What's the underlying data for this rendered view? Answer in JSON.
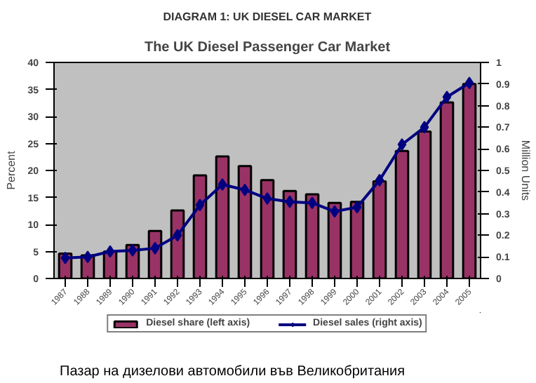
{
  "chart_data": {
    "type": "bar",
    "title": "DIAGRAM 1: UK DIESEL CAR MARKET",
    "subtitle": "The UK Diesel Passenger Car Market",
    "ylabel": "Percent",
    "y2label": "Million Units",
    "categories": [
      "1987",
      "1988",
      "1989",
      "1990",
      "1991",
      "1992",
      "1993",
      "1994",
      "1995",
      "1996",
      "1997",
      "1998",
      "1999",
      "2000",
      "2001",
      "2002",
      "2003",
      "2004",
      "2005"
    ],
    "series": [
      {
        "name": "Diesel share (left axis)",
        "color": "#993366",
        "values": [
          4.6,
          4.3,
          5.0,
          6.2,
          8.8,
          12.6,
          19.1,
          22.6,
          20.8,
          18.2,
          16.2,
          15.6,
          14.0,
          14.2,
          18.0,
          23.6,
          27.2,
          32.6,
          36.0
        ]
      },
      {
        "name": "Diesel sales (right axis)",
        "type": "line",
        "axis": "y2",
        "color": "#000080",
        "marker": "diamond",
        "values": [
          0.095,
          0.1,
          0.125,
          0.13,
          0.14,
          0.2,
          0.34,
          0.435,
          0.41,
          0.37,
          0.355,
          0.35,
          0.31,
          0.33,
          0.455,
          0.62,
          0.7,
          0.84,
          0.905
        ]
      }
    ],
    "ylim": [
      0,
      40
    ],
    "yticks": [
      0,
      5,
      10,
      15,
      20,
      25,
      30,
      35,
      40
    ],
    "y2lim": [
      0,
      1
    ],
    "y2ticks": [
      0,
      0.1,
      0.2,
      0.3,
      0.4,
      0.5,
      0.6,
      0.7,
      0.8,
      0.9,
      1
    ],
    "grid": false,
    "legend": "bottom",
    "annotations": [
      "Пазар на дизелови автомобили във Великобритания"
    ]
  }
}
